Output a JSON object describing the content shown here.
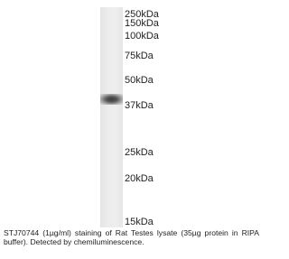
{
  "markers": [
    "250kDa",
    "150kDa",
    "100kDa",
    "75kDa",
    "50kDa",
    "37kDa",
    "25kDa",
    "20kDa",
    "15kDa"
  ],
  "caption": "STJ70744 (1µg/ml) staining of Rat Testes lysate (35µg protein in RIPA buffer). Detected by chemiluminescence."
}
